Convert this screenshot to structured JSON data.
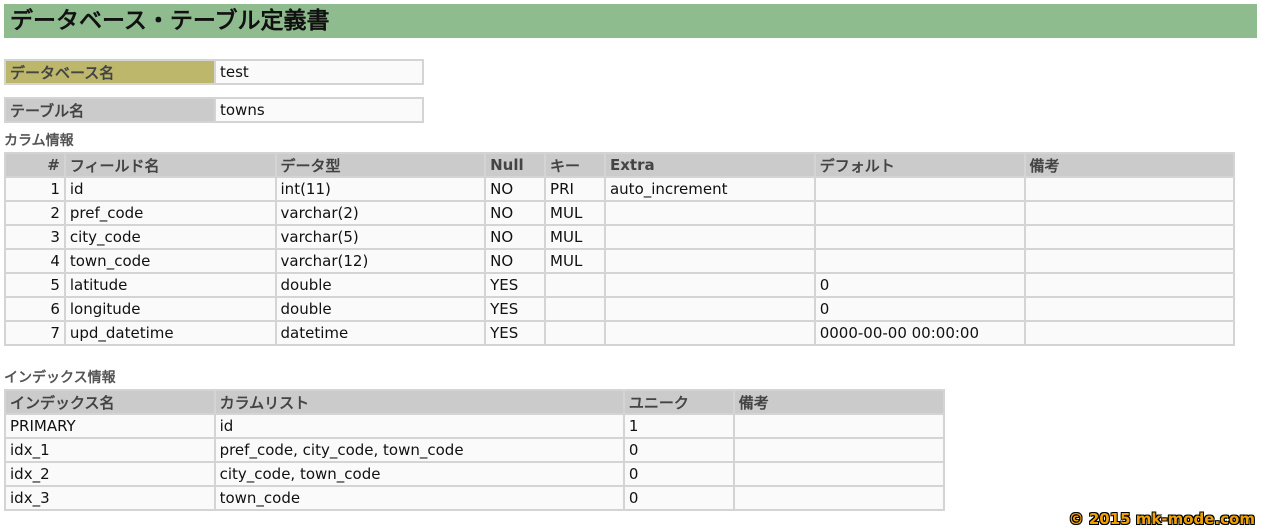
{
  "title": "データベース・テーブル定義書",
  "database": {
    "label": "データベース名",
    "value": "test"
  },
  "table": {
    "label": "テーブル名",
    "value": "towns"
  },
  "columns_section": {
    "heading": "カラム情報",
    "headers": [
      "#",
      "フィールド名",
      "データ型",
      "Null",
      "キー",
      "Extra",
      "デフォルト",
      "備考"
    ],
    "rows": [
      [
        "1",
        "id",
        "int(11)",
        "NO",
        "PRI",
        "auto_increment",
        "",
        ""
      ],
      [
        "2",
        "pref_code",
        "varchar(2)",
        "NO",
        "MUL",
        "",
        "",
        ""
      ],
      [
        "3",
        "city_code",
        "varchar(5)",
        "NO",
        "MUL",
        "",
        "",
        ""
      ],
      [
        "4",
        "town_code",
        "varchar(12)",
        "NO",
        "MUL",
        "",
        "",
        ""
      ],
      [
        "5",
        "latitude",
        "double",
        "YES",
        "",
        "",
        "0",
        ""
      ],
      [
        "6",
        "longitude",
        "double",
        "YES",
        "",
        "",
        "0",
        ""
      ],
      [
        "7",
        "upd_datetime",
        "datetime",
        "YES",
        "",
        "",
        "0000-00-00 00:00:00",
        ""
      ]
    ]
  },
  "index_section": {
    "heading": "インデックス情報",
    "headers": [
      "インデックス名",
      "カラムリスト",
      "ユニーク",
      "備考"
    ],
    "rows": [
      [
        "PRIMARY",
        "id",
        "1",
        ""
      ],
      [
        "idx_1",
        "pref_code, city_code, town_code",
        "0",
        ""
      ],
      [
        "idx_2",
        "city_code, town_code",
        "0",
        ""
      ],
      [
        "idx_3",
        "town_code",
        "0",
        ""
      ]
    ]
  },
  "watermark": "© 2015 mk-mode.com",
  "colors": {
    "title_bg": "#8fbc8f",
    "db_label_bg": "#bdb76b",
    "header_bg": "#cbcbcb"
  }
}
